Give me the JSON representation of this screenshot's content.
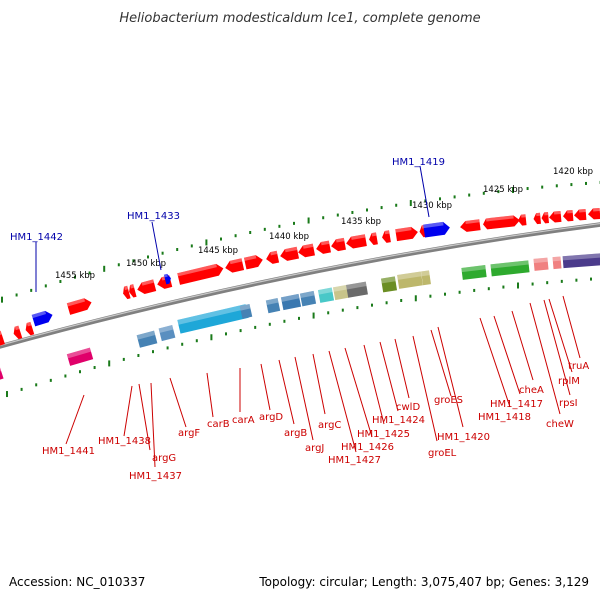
{
  "title": "Heliobacterium modesticaldum Ice1, complete genome",
  "footer": {
    "accession": "Accession: NC_010337",
    "topology": "Topology: circular; Length: 3,075,407 bp; Genes: 3,129"
  },
  "colors": {
    "backbone": "#808080",
    "red_gene": "#ff0000",
    "blue_gene": "#0000ee",
    "red_label": "#cc0000",
    "blue_label": "#0000aa",
    "ruler": "#1a7a1a"
  },
  "ruler_labels": [
    "1455 kbp",
    "1450 kbp",
    "1445 kbp",
    "1440 kbp",
    "1435 kbp",
    "1430 kbp",
    "1425 kbp",
    "1420 kbp"
  ],
  "blue_labels": [
    "HM1_1442",
    "HM1_1433",
    "HM1_1419"
  ],
  "red_labels": [
    "HM1_1441",
    "HM1_1438",
    "argG",
    "HM1_1437",
    "argF",
    "carB",
    "carA",
    "argD",
    "argB",
    "argJ",
    "argC",
    "HM1_1427",
    "HM1_1426",
    "HM1_1425",
    "HM1_1424",
    "cwlD",
    "groEL",
    "HM1_1420",
    "groES",
    "HM1_1418",
    "HM1_1417",
    "cheA",
    "cheW",
    "rpsI",
    "rplM",
    "truA"
  ]
}
